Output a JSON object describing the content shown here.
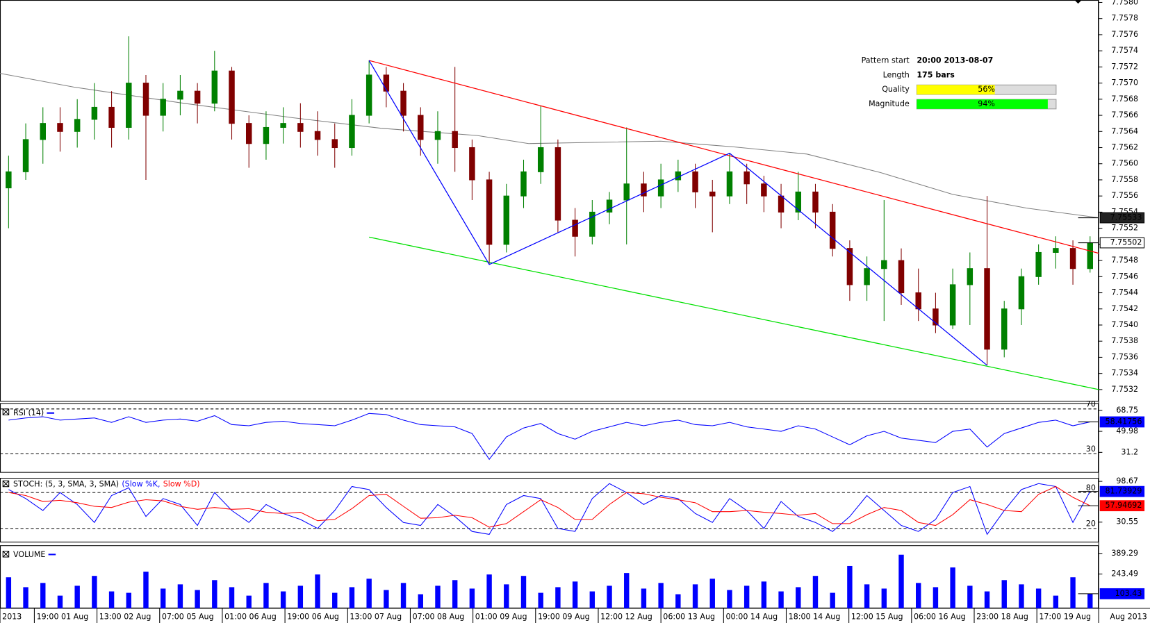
{
  "chart_data": [
    {
      "type": "candlestick",
      "xlim": [
        0,
        64
      ],
      "ylim": [
        7.75305,
        7.75803
      ],
      "yticks": [
        7.7532,
        7.7534,
        7.7536,
        7.7538,
        {
          "value": 7.754,
          "label": "7.7540"
        },
        7.7542,
        7.7544,
        7.7546,
        7.7548,
        {
          "value": 7.755,
          "label": "7.7550"
        },
        7.7552,
        7.7554,
        7.7556,
        7.7558,
        {
          "value": 7.756,
          "label": "7.7560"
        },
        7.7562,
        7.7564,
        7.7566,
        7.7568,
        {
          "value": 7.757,
          "label": "7.7570"
        },
        7.7572,
        7.7574,
        7.7576,
        7.7578,
        {
          "value": 7.758,
          "label": "7.7580"
        }
      ],
      "xticks": [
        {
          "value": 0,
          "label": "2013"
        },
        {
          "value": 2,
          "label": "19:00 01 Aug"
        },
        {
          "value": 5.65,
          "label": "13:00 02 Aug"
        },
        {
          "value": 9.3,
          "label": "07:00 05 Aug"
        },
        {
          "value": 12.95,
          "label": "01:00 06 Aug"
        },
        {
          "value": 16.6,
          "label": "19:00 06 Aug"
        },
        {
          "value": 20.25,
          "label": "13:00 07 Aug"
        },
        {
          "value": 23.9,
          "label": "07:00 08 Aug"
        },
        {
          "value": 27.55,
          "label": "01:00 09 Aug"
        },
        {
          "value": 31.2,
          "label": "19:00 09 Aug"
        },
        {
          "value": 34.85,
          "label": "12:00 12 Aug"
        },
        {
          "value": 38.5,
          "label": "06:00 13 Aug"
        },
        {
          "value": 42.15,
          "label": "00:00 14 Aug"
        },
        {
          "value": 45.8,
          "label": "18:00 14 Aug"
        },
        {
          "value": 49.45,
          "label": "12:00 15 Aug"
        },
        {
          "value": 53.1,
          "label": "06:00 16 Aug"
        },
        {
          "value": 56.75,
          "label": "23:00 18 Aug"
        },
        {
          "value": 60.4,
          "label": "17:00 19 Aug"
        }
      ],
      "x_axis_label": "Aug 2013",
      "up_color": "#008000",
      "down_color": "#800000",
      "open": [
        7.7557,
        7.7559,
        7.7563,
        7.7565,
        7.7564,
        7.75655,
        7.7567,
        7.75645,
        7.757,
        7.7566,
        7.7568,
        7.7569,
        7.75675,
        7.75715,
        7.7565,
        7.75625,
        7.75645,
        7.7565,
        7.7564,
        7.7563,
        7.7562,
        7.7566,
        7.7571,
        7.7569,
        7.7566,
        7.7563,
        7.7564,
        7.7562,
        7.7558,
        7.755,
        7.7556,
        7.7559,
        7.7562,
        7.7553,
        7.7551,
        7.7554,
        7.75555,
        7.75575,
        7.7556,
        7.7558,
        7.7559,
        7.75565,
        7.7556,
        7.7559,
        7.75575,
        7.7556,
        7.7554,
        7.75565,
        7.7554,
        7.75495,
        7.7545,
        7.7547,
        7.7548,
        7.7544,
        7.7542,
        7.754,
        7.7545,
        7.7547,
        7.7537,
        7.7542,
        7.7546,
        7.7549,
        7.75495,
        7.7547
      ],
      "high": [
        7.7561,
        7.7565,
        7.7567,
        7.7567,
        7.7568,
        7.757,
        7.7569,
        7.75758,
        7.7571,
        7.757,
        7.7571,
        7.757,
        7.7574,
        7.7572,
        7.7566,
        7.75665,
        7.7567,
        7.75675,
        7.75665,
        7.7565,
        7.7568,
        7.75728,
        7.7572,
        7.757,
        7.7567,
        7.75665,
        7.7572,
        7.7563,
        7.7559,
        7.75575,
        7.75605,
        7.75672,
        7.7563,
        7.75545,
        7.75555,
        7.75565,
        7.75645,
        7.7559,
        7.756,
        7.75605,
        7.756,
        7.7558,
        7.75613,
        7.756,
        7.75585,
        7.75575,
        7.7559,
        7.75575,
        7.7555,
        7.75505,
        7.75485,
        7.75555,
        7.75495,
        7.7547,
        7.7544,
        7.7547,
        7.7549,
        7.7556,
        7.7543,
        7.7547,
        7.755,
        7.7551,
        7.75505,
        7.7551
      ],
      "low": [
        7.7552,
        7.7558,
        7.756,
        7.75615,
        7.7562,
        7.7563,
        7.7562,
        7.7563,
        7.7558,
        7.7564,
        7.7566,
        7.7565,
        7.75665,
        7.7563,
        7.75595,
        7.75605,
        7.75625,
        7.7562,
        7.7561,
        7.75595,
        7.7561,
        7.7565,
        7.7567,
        7.7564,
        7.7561,
        7.756,
        7.7559,
        7.75555,
        7.75475,
        7.7549,
        7.75545,
        7.75575,
        7.75515,
        7.75485,
        7.755,
        7.75525,
        7.755,
        7.7554,
        7.75545,
        7.75565,
        7.75545,
        7.75515,
        7.7555,
        7.7555,
        7.7554,
        7.7552,
        7.7553,
        7.7552,
        7.75485,
        7.7543,
        7.7543,
        7.75405,
        7.75425,
        7.75405,
        7.7539,
        7.75395,
        7.754,
        7.7535,
        7.7536,
        7.754,
        7.7545,
        7.7547,
        7.7545,
        7.75465
      ],
      "close": [
        7.7559,
        7.7563,
        7.7565,
        7.7564,
        7.75655,
        7.7567,
        7.75645,
        7.757,
        7.7566,
        7.7568,
        7.7569,
        7.75675,
        7.75715,
        7.7565,
        7.75625,
        7.75645,
        7.7565,
        7.7564,
        7.7563,
        7.7562,
        7.7566,
        7.7571,
        7.7569,
        7.7566,
        7.7563,
        7.7564,
        7.7562,
        7.7558,
        7.755,
        7.7556,
        7.7559,
        7.7562,
        7.7553,
        7.7551,
        7.7554,
        7.75555,
        7.75575,
        7.7556,
        7.7558,
        7.7559,
        7.75565,
        7.7556,
        7.7559,
        7.75575,
        7.7556,
        7.7554,
        7.75565,
        7.7554,
        7.75495,
        7.7545,
        7.7547,
        7.7548,
        7.7544,
        7.7542,
        7.754,
        7.7545,
        7.7547,
        7.7537,
        7.7542,
        7.7546,
        7.7549,
        7.75495,
        7.7547,
        7.75502
      ],
      "ma": {
        "color": "#808080",
        "x": [
          0,
          4.3,
          10.7,
          17.1,
          22.2,
          27.8,
          30.8,
          38.5,
          42.7,
          47,
          51.3,
          55.5,
          59.8,
          64
        ],
        "values": [
          7.75712,
          7.75695,
          7.75675,
          7.75657,
          7.75644,
          7.75635,
          7.75625,
          7.75628,
          7.75621,
          7.75612,
          7.75589,
          7.75562,
          7.75545,
          7.75533
        ]
      },
      "lines": [
        {
          "color": "#ff0000",
          "x": [
            21.5,
            64
          ],
          "values": [
            7.75728,
            7.75489
          ]
        },
        {
          "color": "#00e000",
          "x": [
            21.5,
            64
          ],
          "values": [
            7.75509,
            7.7532
          ]
        },
        {
          "color": "#0000ff",
          "x": [
            21.5,
            28.5,
            42.5,
            57.5
          ],
          "values": [
            7.75728,
            7.75475,
            7.75613,
            7.7535
          ]
        }
      ],
      "pattern_info": [
        {
          "label": "Pattern start",
          "text": "20:00 2013-08-07"
        },
        {
          "label": "Length",
          "text": "175 bars"
        },
        {
          "label": "Quality",
          "value": 56,
          "value_label": "56%",
          "color": "#ffff00"
        },
        {
          "label": "Magnitude",
          "value": 94,
          "value_label": "94%",
          "color": "#00ff00"
        }
      ]
    },
    {
      "type": "line",
      "title": "RSI (14)",
      "ylim": [
        13,
        75.2
      ],
      "yticks": [
        68.75,
        49.98,
        31.2
      ],
      "levels": [
        70,
        30
      ],
      "series": [
        {
          "color": "#0000ff",
          "values": [
            60,
            62,
            63,
            60,
            61,
            62,
            58,
            63,
            58,
            60,
            61,
            59,
            64,
            56,
            55,
            58,
            59,
            57,
            56,
            55,
            60,
            66,
            65,
            60,
            56,
            55,
            54,
            48,
            25,
            45,
            53,
            57,
            48,
            43,
            50,
            54,
            58,
            55,
            58,
            60,
            56,
            55,
            58,
            54,
            52,
            50,
            55,
            52,
            45,
            38,
            46,
            50,
            44,
            42,
            40,
            50,
            52,
            36,
            48,
            53,
            58,
            60,
            55,
            58.41756
          ]
        }
      ]
    },
    {
      "type": "line",
      "title": "STOCH: (5, 3, SMA, 3, SMA)",
      "ylim": [
        -3.3,
        104.5
      ],
      "yticks": [
        98.67,
        30.55
      ],
      "levels": [
        80,
        20
      ],
      "series": [
        {
          "name": "(Slow %K,",
          "color": "#0000ff",
          "values": [
            85,
            70,
            50,
            80,
            60,
            30,
            75,
            88,
            40,
            70,
            60,
            25,
            80,
            50,
            30,
            60,
            45,
            35,
            20,
            50,
            90,
            85,
            55,
            30,
            25,
            60,
            40,
            15,
            10,
            60,
            75,
            70,
            20,
            15,
            70,
            95,
            80,
            60,
            75,
            70,
            45,
            30,
            70,
            50,
            20,
            65,
            40,
            30,
            15,
            40,
            75,
            50,
            25,
            15,
            35,
            80,
            90,
            10,
            50,
            85,
            95,
            90,
            30,
            81.73929
          ]
        },
        {
          "name": "Slow %D)",
          "color": "#ff0000",
          "values": [
            80,
            75,
            65,
            67,
            63,
            57,
            55,
            64,
            68,
            66,
            57,
            52,
            55,
            52,
            53,
            47,
            45,
            47,
            33,
            35,
            53,
            75,
            77,
            57,
            37,
            38,
            42,
            38,
            22,
            28,
            48,
            68,
            55,
            35,
            35,
            60,
            80,
            78,
            72,
            68,
            63,
            48,
            48,
            50,
            47,
            45,
            42,
            45,
            28,
            28,
            43,
            55,
            50,
            30,
            25,
            43,
            68,
            60,
            50,
            48,
            77,
            90,
            72,
            57.94692
          ]
        }
      ]
    },
    {
      "type": "bar",
      "title": "VOLUME",
      "ylim": [
        0,
        441.6
      ],
      "yticks": [
        389.29,
        243.49
      ],
      "color": "#0000ff",
      "values": [
        220,
        150,
        180,
        90,
        160,
        230,
        120,
        110,
        260,
        140,
        170,
        130,
        200,
        150,
        90,
        180,
        120,
        160,
        240,
        110,
        150,
        210,
        130,
        180,
        100,
        160,
        200,
        140,
        240,
        170,
        230,
        110,
        150,
        190,
        120,
        160,
        250,
        140,
        180,
        100,
        170,
        210,
        130,
        160,
        190,
        120,
        150,
        230,
        110,
        300,
        170,
        140,
        380,
        180,
        150,
        290,
        160,
        120,
        200,
        170,
        140,
        90,
        220,
        103.43
      ]
    }
  ]
}
